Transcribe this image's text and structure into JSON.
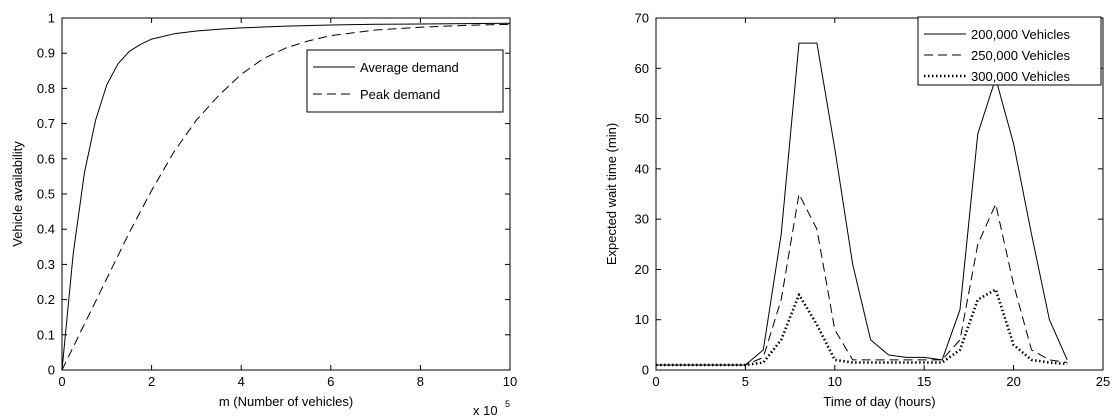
{
  "chart_data": [
    {
      "type": "line",
      "xlabel": "m (Number of vehicles)",
      "ylabel": "Vehicle availability",
      "xlim": [
        0,
        10
      ],
      "ylim": [
        0,
        1
      ],
      "x_multiplier_label": "x 10",
      "x_multiplier_exp": "5",
      "xticks": [
        "0",
        "2",
        "4",
        "6",
        "8",
        "10"
      ],
      "yticks": [
        "0",
        "0.1",
        "0.2",
        "0.3",
        "0.4",
        "0.5",
        "0.6",
        "0.7",
        "0.8",
        "0.9",
        "1"
      ],
      "legend_position": "top-right",
      "grid": false,
      "series": [
        {
          "name": "Average demand",
          "style": "solid",
          "x": [
            0,
            0.25,
            0.5,
            0.75,
            1,
            1.25,
            1.5,
            1.75,
            2,
            2.5,
            3,
            3.5,
            4,
            5,
            6,
            7,
            8,
            9,
            10
          ],
          "y": [
            0,
            0.33,
            0.56,
            0.71,
            0.81,
            0.87,
            0.905,
            0.925,
            0.94,
            0.955,
            0.963,
            0.968,
            0.972,
            0.977,
            0.98,
            0.982,
            0.983,
            0.984,
            0.985
          ]
        },
        {
          "name": "Peak demand",
          "style": "dashed",
          "x": [
            0,
            0.5,
            1,
            1.5,
            2,
            2.5,
            3,
            3.5,
            4,
            4.5,
            5,
            5.5,
            6,
            7,
            8,
            9,
            10
          ],
          "y": [
            0,
            0.13,
            0.26,
            0.39,
            0.51,
            0.62,
            0.71,
            0.78,
            0.84,
            0.885,
            0.915,
            0.935,
            0.95,
            0.966,
            0.974,
            0.979,
            0.982
          ]
        }
      ]
    },
    {
      "type": "line",
      "xlabel": "Time of day (hours)",
      "ylabel": "Expected wait time (min)",
      "xlim": [
        0,
        25
      ],
      "ylim": [
        0,
        70
      ],
      "xticks": [
        "0",
        "5",
        "10",
        "15",
        "20",
        "25"
      ],
      "yticks": [
        "0",
        "10",
        "20",
        "30",
        "40",
        "50",
        "60",
        "70"
      ],
      "legend_position": "top-right",
      "grid": false,
      "series": [
        {
          "name": "200,000 Vehicles",
          "style": "solid",
          "x": [
            0,
            1,
            2,
            3,
            4,
            5,
            6,
            7,
            8,
            9,
            10,
            11,
            12,
            13,
            14,
            15,
            16,
            17,
            18,
            19,
            20,
            21,
            22,
            23
          ],
          "y": [
            1,
            1,
            1,
            1,
            1,
            1,
            4,
            27,
            65,
            65,
            44,
            21,
            6,
            3,
            2.5,
            2.5,
            2,
            12,
            47,
            58,
            45,
            27,
            10,
            2
          ]
        },
        {
          "name": "250,000 Vehicles",
          "style": "dashed",
          "x": [
            0,
            1,
            2,
            3,
            4,
            5,
            6,
            7,
            8,
            9,
            10,
            11,
            12,
            13,
            14,
            15,
            16,
            17,
            18,
            19,
            20,
            21,
            22,
            23
          ],
          "y": [
            1,
            1,
            1,
            1,
            1,
            1,
            2.5,
            14,
            35,
            28,
            8,
            2,
            2,
            2,
            2,
            2,
            2,
            6,
            25,
            33,
            17,
            4,
            2,
            1.5
          ]
        },
        {
          "name": "300,000 Vehicles",
          "style": "dotted",
          "x": [
            0,
            1,
            2,
            3,
            4,
            5,
            6,
            7,
            8,
            9,
            10,
            11,
            12,
            13,
            14,
            15,
            16,
            17,
            18,
            19,
            20,
            21,
            22,
            23
          ],
          "y": [
            1,
            1,
            1,
            1,
            1,
            1,
            1.5,
            6,
            15,
            9,
            2,
            1.5,
            1.5,
            1.5,
            1.5,
            1.5,
            1.5,
            4,
            14,
            16,
            5,
            2,
            1.5,
            1.2
          ]
        }
      ]
    }
  ]
}
